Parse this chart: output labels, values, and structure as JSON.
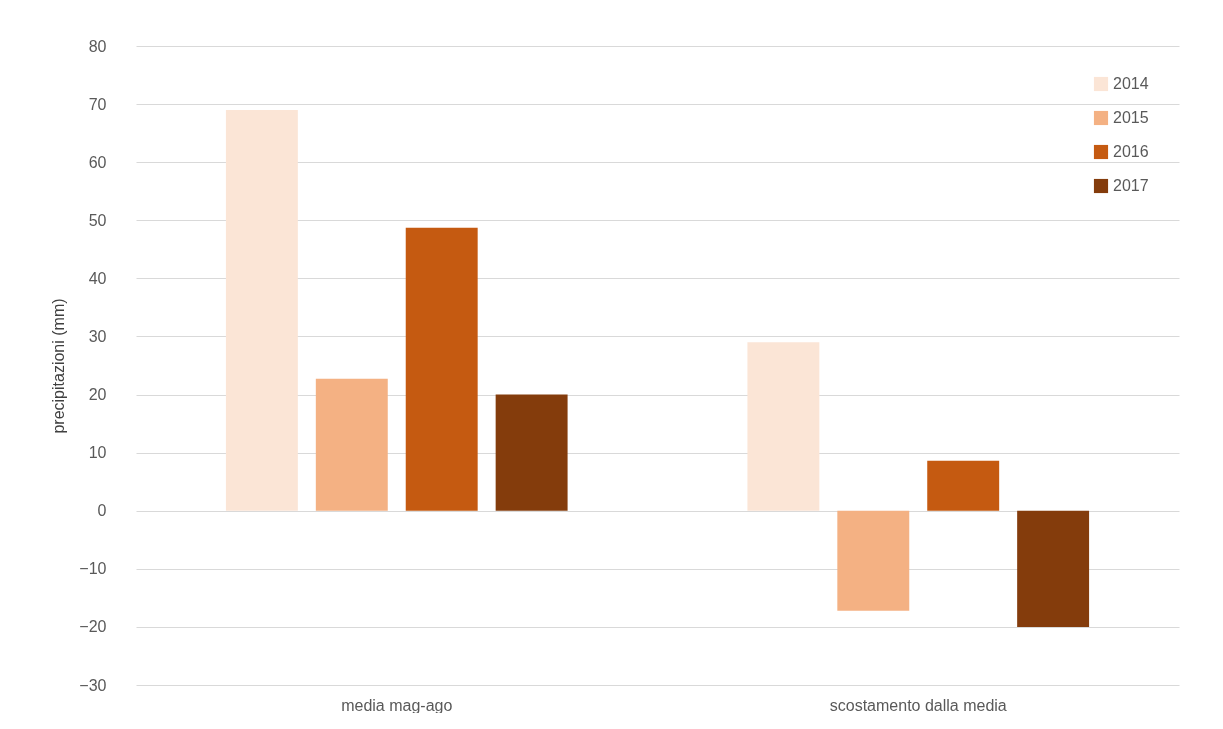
{
  "chart_data": {
    "type": "bar",
    "ylabel": "precipitazioni (mm)",
    "categories": [
      "media mag-ago",
      "scostamento dalla media"
    ],
    "series": [
      {
        "name": "2014",
        "color": "#fbe5d6",
        "values": [
          69,
          29
        ]
      },
      {
        "name": "2015",
        "color": "#f4b183",
        "values": [
          22.7,
          -17.2
        ]
      },
      {
        "name": "2016",
        "color": "#c55a11",
        "values": [
          48.7,
          8.6
        ]
      },
      {
        "name": "2017",
        "color": "#843c0c",
        "values": [
          20,
          -20
        ]
      }
    ],
    "ylim": [
      -30,
      80
    ],
    "yticks": [
      -30,
      -20,
      -10,
      0,
      10,
      20,
      30,
      40,
      50,
      60,
      70,
      80
    ],
    "grid": "y",
    "legend": "top right"
  }
}
